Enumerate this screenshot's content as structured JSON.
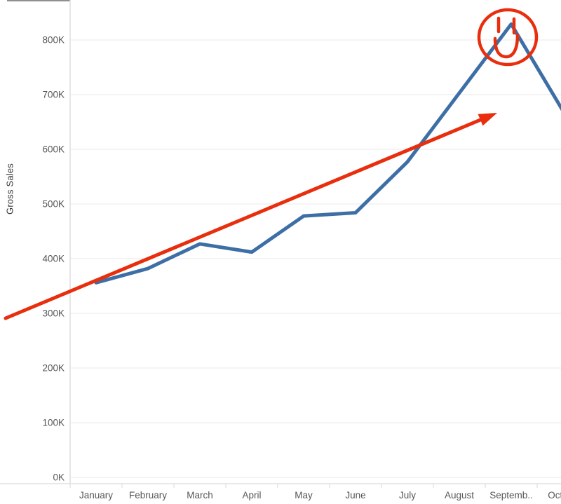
{
  "axis": {
    "y_title": "Gross Sales",
    "y_tick_labels": [
      "0K",
      "100K",
      "200K",
      "300K",
      "400K",
      "500K",
      "600K",
      "700K",
      "800K"
    ],
    "x_tick_labels": [
      "January",
      "February",
      "March",
      "April",
      "May",
      "June",
      "July",
      "August",
      "Septemb..",
      "Octob.."
    ]
  },
  "chart_data": {
    "type": "line",
    "title": "",
    "xlabel": "",
    "ylabel": "Gross Sales",
    "categories": [
      "January",
      "February",
      "March",
      "April",
      "May",
      "June",
      "July",
      "August",
      "September",
      "October"
    ],
    "series": [
      {
        "name": "Gross Sales",
        "values": [
          356000,
          382000,
          427000,
          412000,
          478000,
          484000,
          577000,
          703000,
          829000,
          670000
        ]
      }
    ],
    "ylim": [
      0,
      870000
    ],
    "y_tick_step": 100000,
    "grid": "horizontal",
    "legend": "none",
    "annotations": {
      "trend_arrow": {
        "type": "arrow",
        "color": "#e82e0d",
        "from_xy": [
          8,
          454
        ],
        "to_xy": [
          709,
          161
        ]
      },
      "smiley": {
        "type": "smiley-face",
        "color": "#e82e0d",
        "center_xy": [
          724,
          53
        ],
        "radius_xy": [
          41,
          39
        ]
      }
    }
  },
  "colors": {
    "line": "#3d6fa6",
    "annotation": "#e82e0d",
    "grid": "#eaeaea",
    "axis": "#d9d9d9",
    "tick_text": "#565656",
    "axis_title_text": "#333333"
  }
}
